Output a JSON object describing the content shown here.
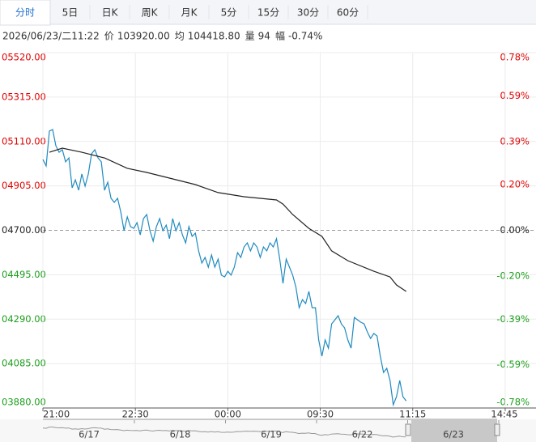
{
  "tabs": [
    "分时",
    "5日",
    "日K",
    "周K",
    "月K",
    "5分",
    "15分",
    "30分",
    "60分"
  ],
  "info": {
    "datetime": "2026/06/23/二11:22",
    "items": [
      {
        "label": "价",
        "value": "103920.00"
      },
      {
        "label": "均",
        "value": "104418.80"
      },
      {
        "label": "量",
        "value": "94"
      },
      {
        "label": "幅",
        "value": "-0.74%"
      }
    ]
  },
  "chart_data": {
    "type": "line",
    "baseline": 4700,
    "ylim": [
      3880,
      5520
    ],
    "yticks": [
      {
        "value": 5520,
        "label": "05520.00"
      },
      {
        "value": 5315,
        "label": "05315.00"
      },
      {
        "value": 5110,
        "label": "05110.00"
      },
      {
        "value": 4905,
        "label": "04905.00"
      },
      {
        "value": 4700,
        "label": "04700.00"
      },
      {
        "value": 4495,
        "label": "04495.00"
      },
      {
        "value": 4290,
        "label": "04290.00"
      },
      {
        "value": 4085,
        "label": "04085.00"
      },
      {
        "value": 3880,
        "label": "03880.00"
      }
    ],
    "y2lim": [
      -0.78,
      0.78
    ],
    "y2ticks": [
      {
        "value": 0.78,
        "label": "0.78%"
      },
      {
        "value": 0.59,
        "label": "0.59%"
      },
      {
        "value": 0.39,
        "label": "0.39%"
      },
      {
        "value": 0.2,
        "label": "0.20%"
      },
      {
        "value": 0,
        "label": "0.00%"
      },
      {
        "value": -0.2,
        "label": "-0.20%"
      },
      {
        "value": -0.39,
        "label": "-0.39%"
      },
      {
        "value": -0.59,
        "label": "-0.59%"
      },
      {
        "value": -0.78,
        "label": "-0.78%"
      }
    ],
    "xlim": [
      0,
      152
    ],
    "xticks": [
      {
        "value": 0,
        "label": "21:00"
      },
      {
        "value": 28.5,
        "label": "22:30"
      },
      {
        "value": 57,
        "label": "00:00"
      },
      {
        "value": 85.5,
        "label": "09:30"
      },
      {
        "value": 114,
        "label": "11:15"
      },
      {
        "value": 142.5,
        "label": "14:45"
      }
    ],
    "series": [
      {
        "color": "#1f8ac0",
        "values": [
          5027,
          4997,
          5158,
          5165,
          5090,
          5060,
          5072,
          5016,
          5034,
          4896,
          4933,
          4885,
          4960,
          4904,
          4960,
          5053,
          5072,
          5034,
          5016,
          4885,
          4922,
          4848,
          4829,
          4848,
          4784,
          4698,
          4762,
          4717,
          4709,
          4735,
          4679,
          4754,
          4773,
          4698,
          4650,
          4717,
          4754,
          4698,
          4724,
          4661,
          4754,
          4698,
          4735,
          4679,
          4642,
          4717,
          4672,
          4687,
          4605,
          4549,
          4575,
          4530,
          4586,
          4530,
          4567,
          4493,
          4485,
          4511,
          4493,
          4530,
          4597,
          4575,
          4623,
          4642,
          4605,
          4642,
          4623,
          4575,
          4623,
          4605,
          4642,
          4623,
          4661,
          4567,
          4455,
          4567,
          4530,
          4493,
          4437,
          4343,
          4380,
          4362,
          4418,
          4343,
          4343,
          4194,
          4119,
          4194,
          4156,
          4268,
          4287,
          4306,
          4268,
          4250,
          4194,
          4156,
          4298,
          4287,
          4276,
          4268,
          4231,
          4201,
          4224,
          4212,
          4119,
          4044,
          4063,
          4007,
          3895,
          3932,
          4007,
          3932,
          3913
        ]
      },
      {
        "color": "#222222",
        "x": [
          2,
          6,
          12,
          19,
          26,
          32,
          39,
          47,
          54,
          62,
          72,
          74,
          77,
          82,
          86,
          89,
          94,
          102,
          107,
          109,
          112
        ],
        "values": [
          5060,
          5079,
          5060,
          5034,
          4986,
          4967,
          4941,
          4911,
          4874,
          4855,
          4840,
          4821,
          4773,
          4709,
          4672,
          4605,
          4560,
          4511,
          4485,
          4448,
          4418
        ]
      }
    ]
  },
  "navigator": {
    "labels": [
      "6/17",
      "6/18",
      "6/19",
      "6/22",
      "6/23"
    ]
  }
}
